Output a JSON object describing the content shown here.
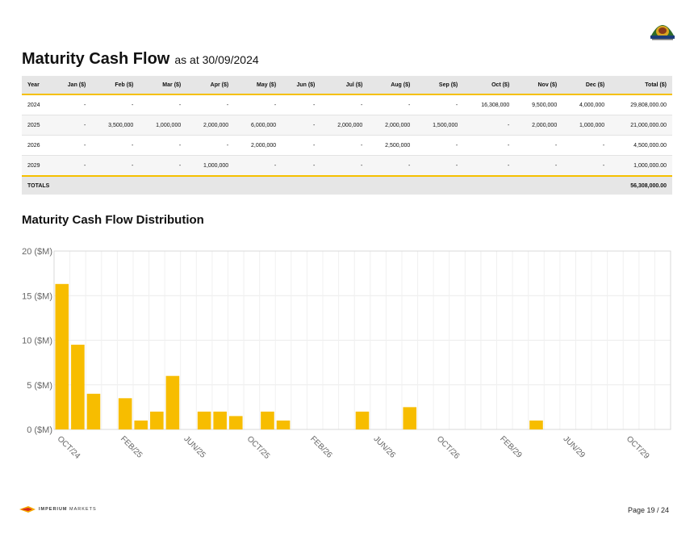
{
  "header": {
    "title": "Maturity Cash Flow",
    "subtitle": "as at 30/09/2024"
  },
  "table": {
    "columns": [
      "Year",
      "Jan ($)",
      "Feb ($)",
      "Mar ($)",
      "Apr ($)",
      "May ($)",
      "Jun ($)",
      "Jul ($)",
      "Aug ($)",
      "Sep ($)",
      "Oct ($)",
      "Nov ($)",
      "Dec ($)",
      "Total ($)"
    ],
    "rows": [
      [
        "2024",
        "-",
        "-",
        "-",
        "-",
        "-",
        "-",
        "-",
        "-",
        "-",
        "16,308,000",
        "9,500,000",
        "4,000,000",
        "29,808,000.00"
      ],
      [
        "2025",
        "-",
        "3,500,000",
        "1,000,000",
        "2,000,000",
        "6,000,000",
        "-",
        "2,000,000",
        "2,000,000",
        "1,500,000",
        "-",
        "2,000,000",
        "1,000,000",
        "21,000,000.00"
      ],
      [
        "2026",
        "-",
        "-",
        "-",
        "-",
        "2,000,000",
        "-",
        "-",
        "2,500,000",
        "-",
        "-",
        "-",
        "-",
        "4,500,000.00"
      ],
      [
        "2029",
        "-",
        "-",
        "-",
        "1,000,000",
        "-",
        "-",
        "-",
        "-",
        "-",
        "-",
        "-",
        "-",
        "1,000,000.00"
      ]
    ],
    "totals_label": "TOTALS",
    "totals_value": "56,308,000.00"
  },
  "chart_section": {
    "title": "Maturity Cash Flow Distribution"
  },
  "chart_data": {
    "type": "bar",
    "categories": [
      "OCT/24",
      "NOV/24",
      "DEC/24",
      "JAN/25",
      "FEB/25",
      "MAR/25",
      "APR/25",
      "MAY/25",
      "JUN/25",
      "JUL/25",
      "AUG/25",
      "SEP/25",
      "OCT/25",
      "NOV/25",
      "DEC/25",
      "JAN/26",
      "FEB/26",
      "MAR/26",
      "APR/26",
      "MAY/26",
      "JUN/26",
      "JUL/26",
      "AUG/26",
      "SEP/26",
      "OCT/26",
      "NOV/26",
      "DEC/26",
      "JAN/29",
      "FEB/29",
      "MAR/29",
      "APR/29",
      "MAY/29",
      "JUN/29",
      "JUL/29",
      "AUG/29",
      "SEP/29",
      "OCT/29",
      "NOV/29",
      "DEC/29"
    ],
    "values": [
      16.308,
      9.5,
      4,
      0,
      3.5,
      1,
      2,
      6,
      0,
      2,
      2,
      1.5,
      0,
      2,
      1,
      0,
      0,
      0,
      0,
      2,
      0,
      0,
      2.5,
      0,
      0,
      0,
      0,
      0,
      0,
      0,
      1,
      0,
      0,
      0,
      0,
      0,
      0,
      0,
      0
    ],
    "tick_labels": [
      "OCT/24",
      "FEB/25",
      "JUN/25",
      "OCT/25",
      "FEB/26",
      "JUN/26",
      "OCT/26",
      "FEB/29",
      "JUN/29",
      "OCT/29"
    ],
    "y_ticks": [
      "0 ($M)",
      "5 ($M)",
      "10 ($M)",
      "15 ($M)",
      "20 ($M)"
    ],
    "ylim": [
      0,
      20
    ],
    "grid": true,
    "bar_color": "#f7bd00"
  },
  "footer": {
    "brand_bold": "IMPERIUM",
    "brand_rest": " MARKETS",
    "page": "Page 19 / 24"
  },
  "icons": [
    "council-seal-logo",
    "imperium-markets-logo-icon"
  ]
}
